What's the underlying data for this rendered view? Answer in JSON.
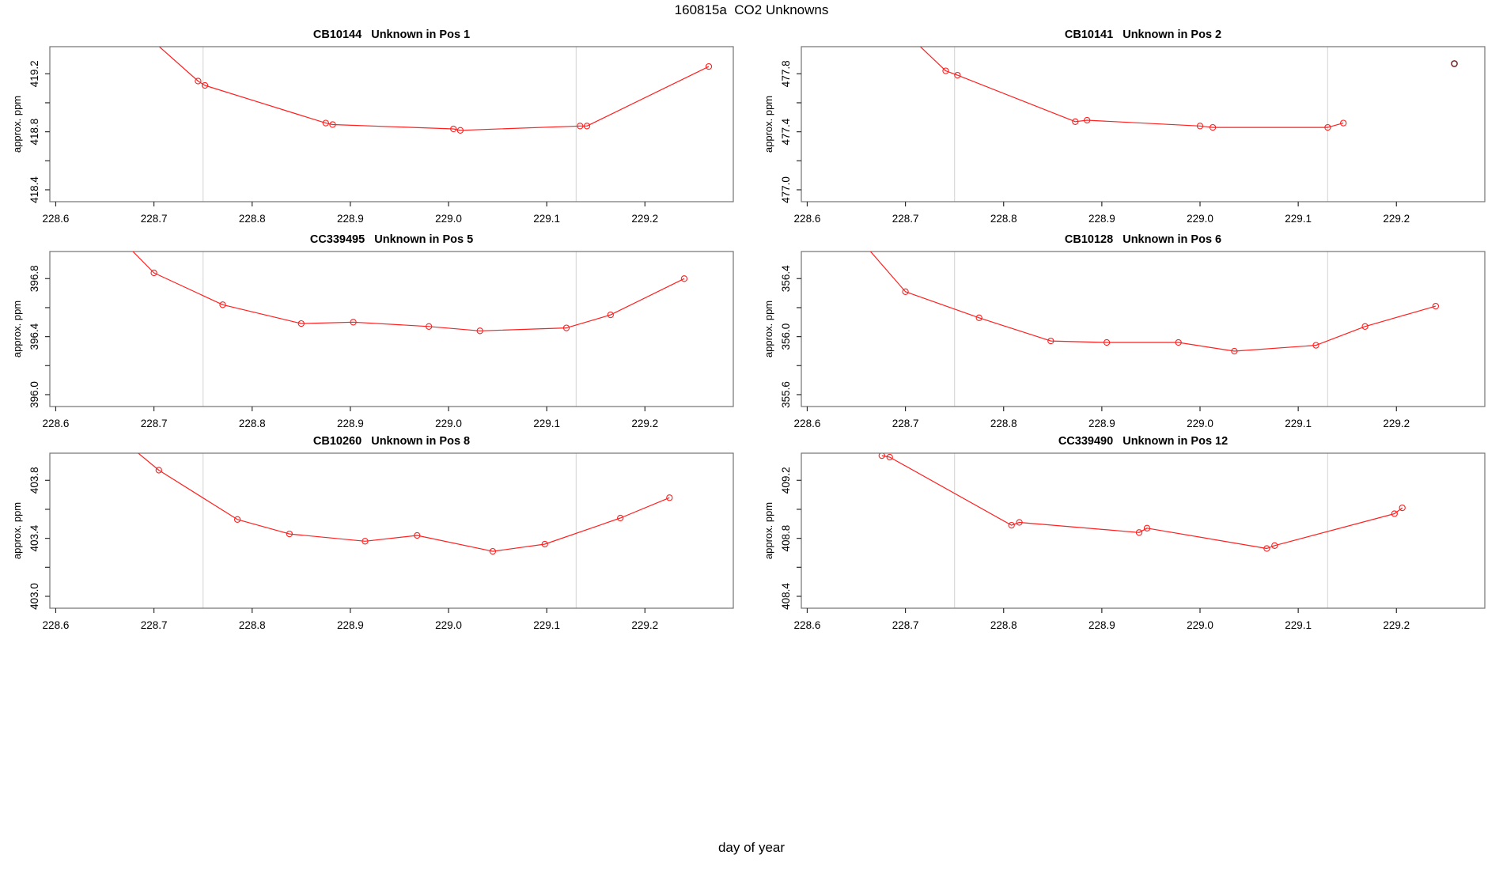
{
  "page_title": "160815a  CO2 Unknowns",
  "xlabel": "day of year",
  "axis": {
    "x_ticks": [
      "228.6",
      "228.7",
      "228.8",
      "228.9",
      "229.0",
      "229.1",
      "229.2"
    ],
    "xlim": [
      228.594,
      229.29
    ],
    "gridlines_x": [
      228.75,
      229.13
    ],
    "ylabel": "approx. ppm",
    "y_tick_step": 0.2
  },
  "colors": {
    "line": "#ff1f1f",
    "marker": "#ff1f1f",
    "detached_marker": "#7c2222",
    "grid": "#dcdcdc",
    "axis_frame": "#737373",
    "tick": "#2b2b2b",
    "text": "#000000"
  },
  "chart_data": [
    {
      "type": "line",
      "title": "CB10144   Unknown in Pos 1",
      "sample_id": "CB10144",
      "position": "Pos 1",
      "ylabel": "approx. ppm",
      "y_tick_labels": [
        "419.2",
        "418.8",
        "418.4"
      ],
      "ylim": [
        418.318,
        419.387
      ],
      "leadin": [
        228.67,
        419.6
      ],
      "points": [
        [
          228.745,
          419.15
        ],
        [
          228.752,
          419.12
        ],
        [
          228.875,
          418.86
        ],
        [
          228.882,
          418.85
        ],
        [
          229.005,
          418.82
        ],
        [
          229.012,
          418.81
        ],
        [
          229.134,
          418.84
        ],
        [
          229.141,
          418.84
        ],
        [
          229.265,
          419.25
        ]
      ],
      "detached_point": null
    },
    {
      "type": "line",
      "title": "CB10141   Unknown in Pos 2",
      "sample_id": "CB10141",
      "position": "Pos 2",
      "ylabel": "approx. ppm",
      "y_tick_labels": [
        "477.8",
        "477.4",
        "477.0"
      ],
      "ylim": [
        476.918,
        477.987
      ],
      "leadin": [
        228.69,
        478.15
      ],
      "points": [
        [
          228.741,
          477.82
        ],
        [
          228.753,
          477.79
        ],
        [
          228.873,
          477.47
        ],
        [
          228.885,
          477.48
        ],
        [
          229.0,
          477.44
        ],
        [
          229.013,
          477.43
        ],
        [
          229.13,
          477.43
        ],
        [
          229.146,
          477.46
        ]
      ],
      "detached_point": [
        229.259,
        477.87
      ]
    },
    {
      "type": "line",
      "title": "CC339495   Unknown in Pos 5",
      "sample_id": "CC339495",
      "position": "Pos 5",
      "ylabel": "approx. ppm",
      "y_tick_labels": [
        "396.8",
        "396.4",
        "396.0"
      ],
      "ylim": [
        395.918,
        396.987
      ],
      "leadin": [
        228.655,
        397.15
      ],
      "points": [
        [
          228.7,
          396.84
        ],
        [
          228.77,
          396.62
        ],
        [
          228.85,
          396.49
        ],
        [
          228.903,
          396.5
        ],
        [
          228.98,
          396.47
        ],
        [
          229.032,
          396.44
        ],
        [
          229.12,
          396.46
        ],
        [
          229.165,
          396.55
        ],
        [
          229.24,
          396.8
        ]
      ],
      "detached_point": null
    },
    {
      "type": "line",
      "title": "CB10128   Unknown in Pos 6",
      "sample_id": "CB10128",
      "position": "Pos 6",
      "ylabel": "approx. ppm",
      "y_tick_labels": [
        "356.4",
        "356.0",
        "355.6"
      ],
      "ylim": [
        355.518,
        356.587
      ],
      "leadin": [
        228.65,
        356.7
      ],
      "points": [
        [
          228.7,
          356.31
        ],
        [
          228.775,
          356.13
        ],
        [
          228.848,
          355.97
        ],
        [
          228.905,
          355.96
        ],
        [
          228.978,
          355.96
        ],
        [
          229.035,
          355.9
        ],
        [
          229.118,
          355.94
        ],
        [
          229.168,
          356.07
        ],
        [
          229.24,
          356.21
        ]
      ],
      "detached_point": null
    },
    {
      "type": "line",
      "title": "CB10260   Unknown in Pos 8",
      "sample_id": "CB10260",
      "position": "Pos 8",
      "ylabel": "approx. ppm",
      "y_tick_labels": [
        "403.8",
        "403.4",
        "403.0"
      ],
      "ylim": [
        402.918,
        403.987
      ],
      "leadin": [
        228.655,
        404.15
      ],
      "points": [
        [
          228.705,
          403.87
        ],
        [
          228.785,
          403.53
        ],
        [
          228.838,
          403.43
        ],
        [
          228.915,
          403.38
        ],
        [
          228.968,
          403.42
        ],
        [
          229.045,
          403.31
        ],
        [
          229.098,
          403.36
        ],
        [
          229.175,
          403.54
        ],
        [
          229.225,
          403.68
        ]
      ],
      "detached_point": null
    },
    {
      "type": "line",
      "title": "CC339490   Unknown in Pos 12",
      "sample_id": "CC339490",
      "position": "Pos 12",
      "ylabel": "approx. ppm",
      "y_tick_labels": [
        "409.2",
        "408.8",
        "408.4"
      ],
      "ylim": [
        408.318,
        409.387
      ],
      "leadin": null,
      "points": [
        [
          228.676,
          409.37
        ],
        [
          228.684,
          409.36
        ],
        [
          228.808,
          408.89
        ],
        [
          228.816,
          408.91
        ],
        [
          228.938,
          408.84
        ],
        [
          228.946,
          408.87
        ],
        [
          229.068,
          408.73
        ],
        [
          229.076,
          408.75
        ],
        [
          229.198,
          408.97
        ],
        [
          229.206,
          409.01
        ]
      ],
      "detached_point": null
    }
  ]
}
